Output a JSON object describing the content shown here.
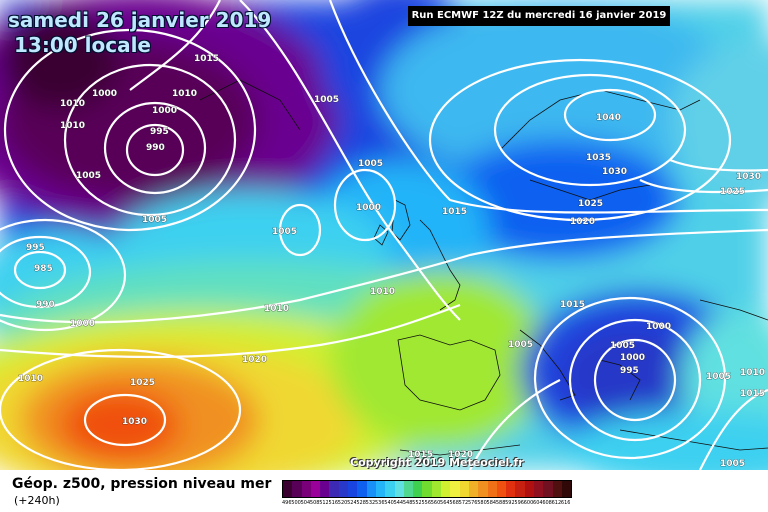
{
  "header": {
    "date_line": "samedi 26 janvier 2019",
    "time_line": "13:00 locale",
    "run_line": "Run ECMWF 12Z du mercredi 16 janvier 2019"
  },
  "footer": {
    "legend_title": "Géop. z500, pression niveau mer",
    "lead_time": "(+240h)",
    "copyright": "Copyright 2019 Meteociel.fr"
  },
  "colorbar": {
    "values": [
      "496",
      "500",
      "504",
      "508",
      "512",
      "516",
      "520",
      "524",
      "528",
      "532",
      "536",
      "540",
      "544",
      "548",
      "552",
      "556",
      "560",
      "564",
      "568",
      "572",
      "576",
      "580",
      "584",
      "588",
      "592",
      "596",
      "600",
      "604",
      "608",
      "612",
      "616"
    ],
    "colors": [
      "#3a0030",
      "#580058",
      "#7a007a",
      "#9a009a",
      "#6a0090",
      "#3c2ab4",
      "#2838c8",
      "#1a44e0",
      "#1060f0",
      "#1890f8",
      "#24b4f8",
      "#3cd0f0",
      "#60e0e0",
      "#50d890",
      "#40d050",
      "#70dc30",
      "#a0e830",
      "#d0f030",
      "#f0f040",
      "#f0d830",
      "#f0b028",
      "#f09020",
      "#f07018",
      "#f05010",
      "#e03010",
      "#c82010",
      "#b01010",
      "#901020",
      "#701020",
      "#501010",
      "#300808"
    ]
  },
  "isobars": [
    {
      "value": "1015"
    },
    {
      "value": "1010"
    },
    {
      "value": "1010"
    },
    {
      "value": "1010"
    },
    {
      "value": "1000"
    },
    {
      "value": "1000"
    },
    {
      "value": "995"
    },
    {
      "value": "990"
    },
    {
      "value": "1005"
    },
    {
      "value": "1005"
    },
    {
      "value": "1005"
    },
    {
      "value": "1000"
    },
    {
      "value": "1005"
    },
    {
      "value": "1015"
    },
    {
      "value": "1005"
    },
    {
      "value": "995"
    },
    {
      "value": "985"
    },
    {
      "value": "990"
    },
    {
      "value": "1000"
    },
    {
      "value": "1010"
    },
    {
      "value": "1010"
    },
    {
      "value": "1020"
    },
    {
      "value": "1010"
    },
    {
      "value": "1025"
    },
    {
      "value": "1030"
    },
    {
      "value": "1040"
    },
    {
      "value": "1035"
    },
    {
      "value": "1030"
    },
    {
      "value": "1025"
    },
    {
      "value": "1020"
    },
    {
      "value": "1030"
    },
    {
      "value": "1025"
    },
    {
      "value": "1015"
    },
    {
      "value": "1000"
    },
    {
      "value": "1005"
    },
    {
      "value": "1005"
    },
    {
      "value": "1000"
    },
    {
      "value": "995"
    },
    {
      "value": "1005"
    },
    {
      "value": "1010"
    },
    {
      "value": "1015"
    },
    {
      "value": "1015"
    },
    {
      "value": "1020"
    },
    {
      "value": "1005"
    }
  ]
}
